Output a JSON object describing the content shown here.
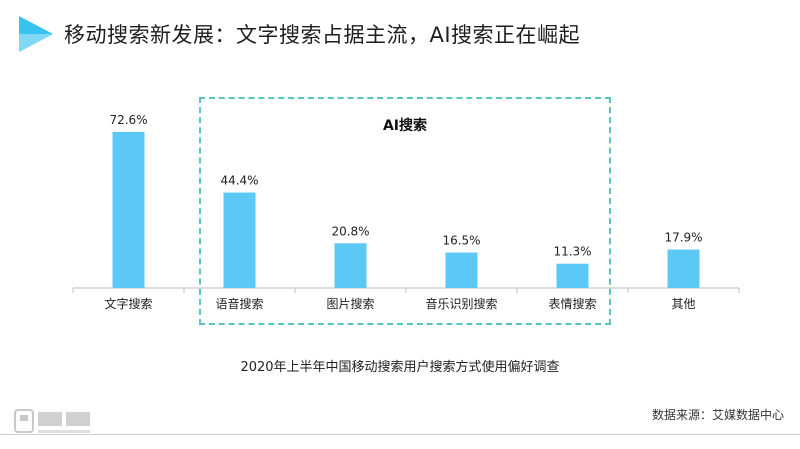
{
  "header": {
    "title": "移动搜索新发展：文字搜索占据主流，AI搜索正在崛起",
    "accent_color": "#3ac6f0"
  },
  "ai_group": {
    "label": "AI搜索",
    "border_color": "#56c6c0"
  },
  "chart_data": {
    "type": "bar",
    "categories": [
      "文字搜索",
      "语音搜索",
      "图片搜索",
      "音乐识别搜索",
      "表情搜索",
      "其他"
    ],
    "values": [
      72.6,
      44.4,
      20.8,
      16.5,
      11.3,
      17.9
    ],
    "value_labels": [
      "72.6%",
      "44.4%",
      "20.8%",
      "16.5%",
      "11.3%",
      "17.9%"
    ],
    "title": "2020年上半年中国移动搜索用户搜索方式使用偏好调查",
    "ylim": [
      0,
      100
    ],
    "bar_color": "#5bc8f5",
    "grid": false
  },
  "footer": {
    "source": "数据来源：艾媒数据中心",
    "brand_icon": "imedia-logo-icon"
  }
}
